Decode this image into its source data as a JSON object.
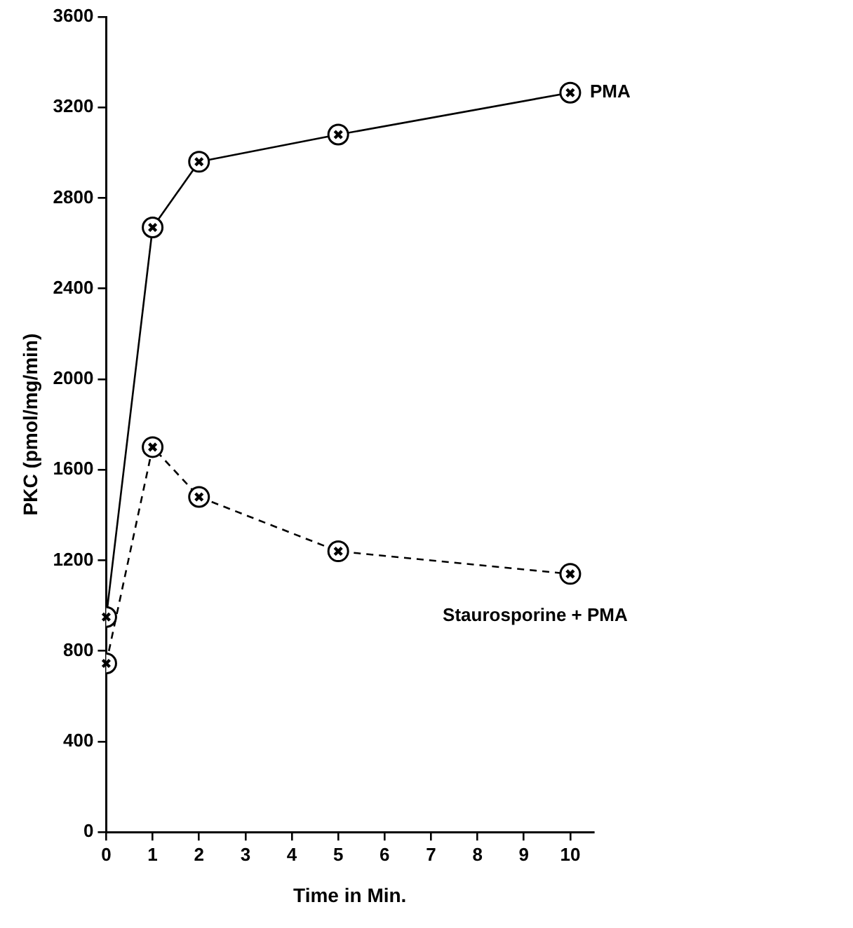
{
  "chart_data": {
    "type": "line",
    "xlabel": "Time in Min.",
    "ylabel": "PKC (pmol/mg/min)",
    "x": [
      0,
      1,
      2,
      5,
      10
    ],
    "series": [
      {
        "name": "PMA",
        "color": "#000000",
        "values": [
          950,
          2670,
          2960,
          3080,
          3265
        ],
        "line_style": "solid"
      },
      {
        "name": "Staurosporine + PMA",
        "color": "#000000",
        "values": [
          745,
          1700,
          1480,
          1240,
          1140
        ],
        "line_style": "dashed"
      }
    ],
    "xlim": [
      0,
      10.5
    ],
    "xticks": [
      0,
      1,
      2,
      3,
      4,
      5,
      6,
      7,
      8,
      9,
      10
    ],
    "ylim": [
      0,
      3600
    ],
    "yticks": [
      0,
      400,
      800,
      1200,
      1600,
      2000,
      2400,
      2800,
      3200,
      3600
    ],
    "grid": false,
    "legend": false,
    "marker": "circle"
  }
}
